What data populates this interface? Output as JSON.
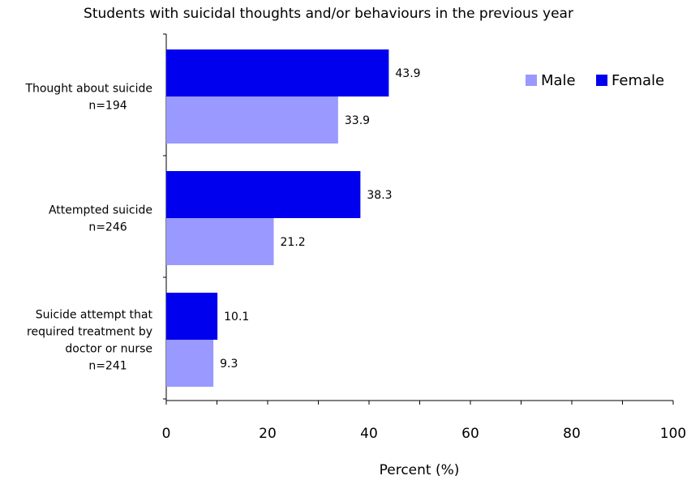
{
  "chart_data": {
    "type": "bar",
    "orientation": "horizontal",
    "title": "Students with suicidal thoughts and/or behaviours in the previous year",
    "xlabel": "Percent (%)",
    "ylabel": "",
    "xlim": [
      0,
      100
    ],
    "xticks": [
      0,
      20,
      40,
      60,
      80,
      100
    ],
    "grid": false,
    "legend_position": "top-right",
    "categories": [
      [
        "Thought about suicide",
        "n=194"
      ],
      [
        "Attempted suicide",
        "n=246"
      ],
      [
        "Suicide attempt that",
        "required treatment by",
        "doctor or nurse",
        "n=241"
      ]
    ],
    "series": [
      {
        "name": "Male",
        "color": "#9999FF",
        "values": [
          33.9,
          21.2,
          9.3
        ]
      },
      {
        "name": "Female",
        "color": "#0000EE",
        "values": [
          43.9,
          38.3,
          10.1
        ]
      }
    ]
  }
}
